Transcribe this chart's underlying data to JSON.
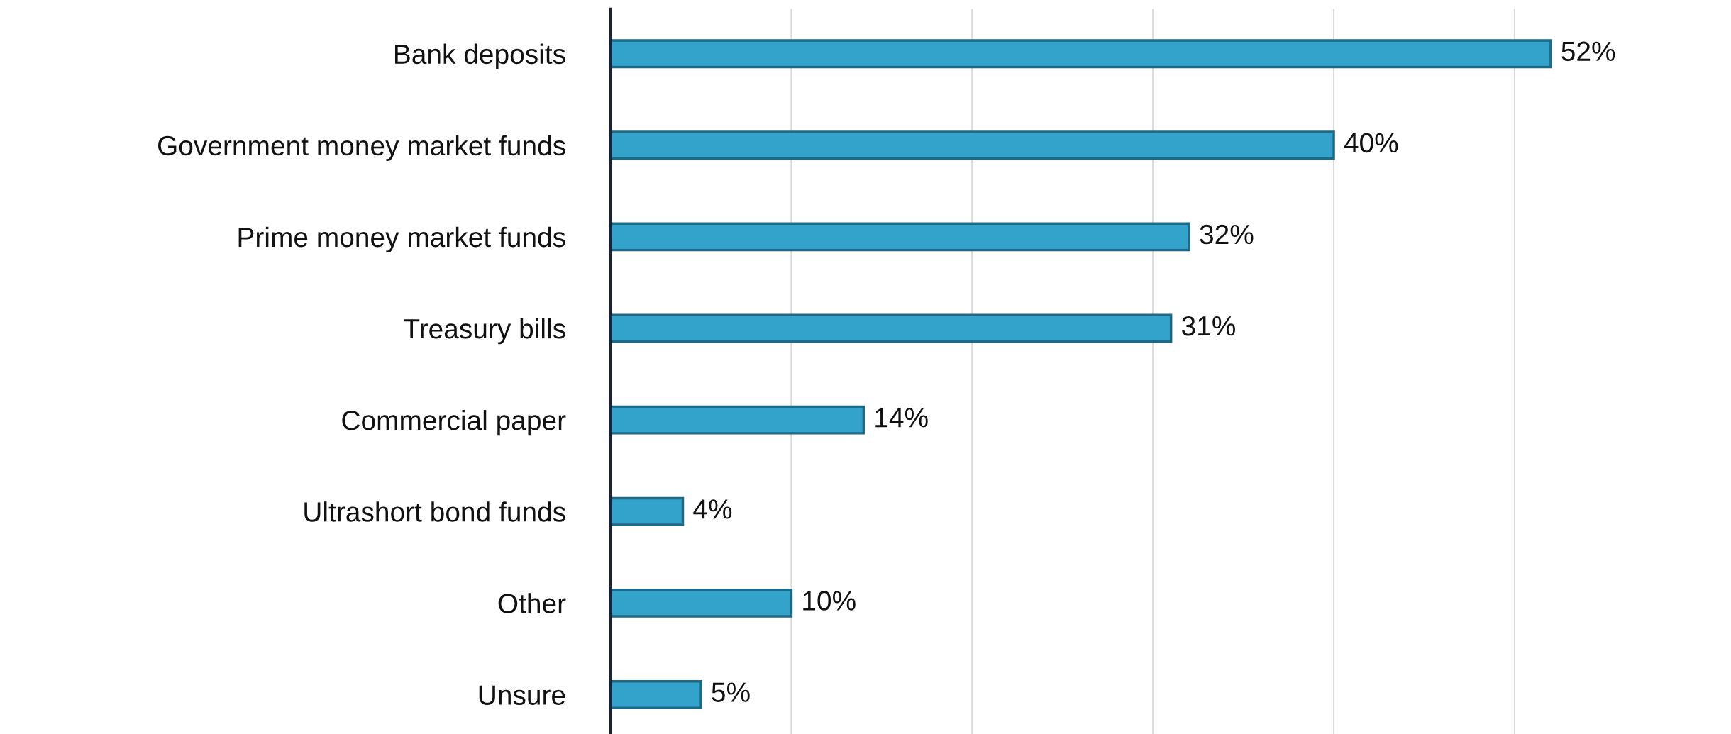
{
  "chart_data": {
    "type": "bar",
    "orientation": "horizontal",
    "categories": [
      "Bank deposits",
      "Government money market funds",
      "Prime money market funds",
      "Treasury bills",
      "Commercial paper",
      "Ultrashort bond funds",
      "Other",
      "Unsure"
    ],
    "values": [
      52,
      40,
      32,
      31,
      14,
      4,
      10,
      5
    ],
    "value_labels": [
      "52%",
      "40%",
      "32%",
      "31%",
      "14%",
      "4%",
      "10%",
      "5%"
    ],
    "color": "#33a3cc",
    "xticks": [
      {
        "value": 0,
        "label": null
      },
      {
        "value": 10,
        "label": null
      },
      {
        "value": 20,
        "label": null
      },
      {
        "value": 30,
        "label": null
      },
      {
        "value": 40,
        "label": null
      },
      {
        "value": 50,
        "label": null
      }
    ],
    "tick_labels": "y",
    "grid": "x"
  }
}
